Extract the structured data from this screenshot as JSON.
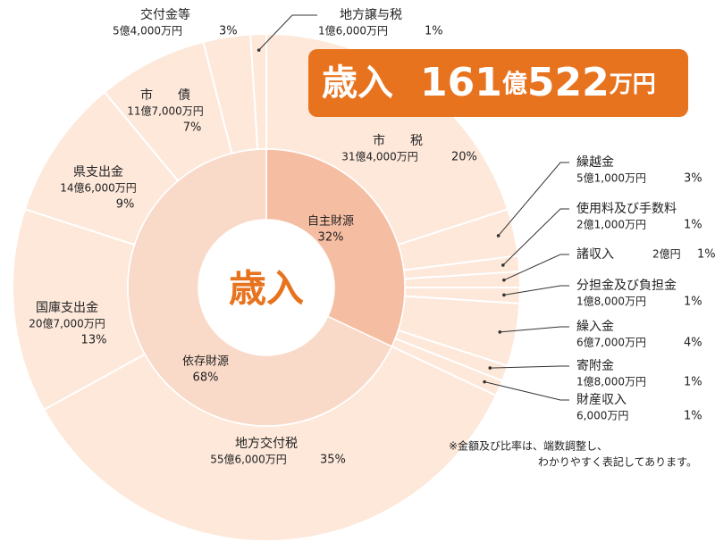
{
  "chart_data": {
    "type": "donut",
    "center_label": "歳入",
    "banner": {
      "label": "歳入",
      "amount1": "161",
      "unit1": "億",
      "amount2": "522",
      "unit2": "万円"
    },
    "categories": [
      "市　　税",
      "繰越金",
      "使用料及び手数料",
      "諸収入",
      "分担金及び負担金",
      "繰入金",
      "寄附金",
      "財産収入",
      "地方交付税",
      "国庫支出金",
      "県支出金",
      "市　　債",
      "交付金等",
      "地方譲与税"
    ],
    "amounts": [
      "31億4,000万円",
      "5億1,000万円",
      "2億1,000万円",
      "2億円",
      "1億8,000万円",
      "6億7,000万円",
      "1億8,000万円",
      "6,000万円",
      "55億6,000万円",
      "20億7,000万円",
      "14億6,000万円",
      "11億7,000万円",
      "5億4,000万円",
      "1億6,000万円"
    ],
    "values": [
      20,
      3,
      1,
      1,
      1,
      4,
      1,
      1,
      35,
      13,
      9,
      7,
      3,
      1
    ],
    "value_labels": [
      "20%",
      "3%",
      "1%",
      "1%",
      "1%",
      "4%",
      "1%",
      "1%",
      "35%",
      "13%",
      "9%",
      "7%",
      "3%",
      "1%"
    ],
    "color": "#fde8da",
    "inner": {
      "categories": [
        "自主財源",
        "依存財源"
      ],
      "values": [
        32,
        68
      ],
      "value_labels": [
        "32%",
        "68%"
      ],
      "colors": [
        "#f5bea3",
        "#f9d9c7"
      ]
    },
    "note": [
      "※金額及び比率は、端数調整し、",
      "わかりやすく表記してあります。"
    ]
  }
}
